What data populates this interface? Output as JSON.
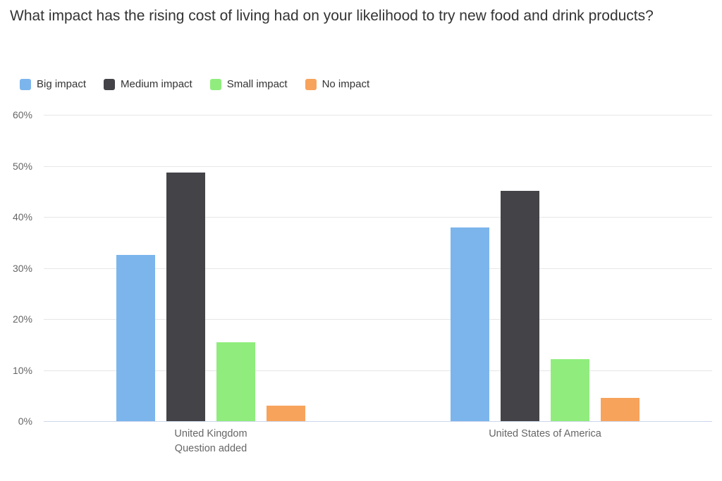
{
  "chart_data": {
    "type": "bar",
    "title": "What impact has the rising cost of living had on your likelihood to try new food and drink products?",
    "categories": [
      "United Kingdom\nQuestion added",
      "United States of America"
    ],
    "series": [
      {
        "name": "Big impact",
        "color": "#7cb5ec",
        "values": [
          32.5,
          38.0
        ]
      },
      {
        "name": "Medium impact",
        "color": "#434348",
        "values": [
          48.7,
          45.1
        ]
      },
      {
        "name": "Small impact",
        "color": "#90ed7d",
        "values": [
          15.5,
          12.1
        ]
      },
      {
        "name": "No impact",
        "color": "#f7a35c",
        "values": [
          3.0,
          4.5
        ]
      }
    ],
    "xlabel": "",
    "ylabel": "",
    "ylim": [
      0,
      60
    ],
    "ytick_step": 10,
    "yticks": [
      "0%",
      "10%",
      "20%",
      "30%",
      "40%",
      "50%",
      "60%"
    ],
    "grid": true,
    "legend_position": "top-left",
    "colors": {
      "title_text": "#333333",
      "axis_label_text": "#666666",
      "gridline": "#e6e6e6",
      "baseline": "#ccd6eb",
      "background": "#ffffff"
    }
  }
}
